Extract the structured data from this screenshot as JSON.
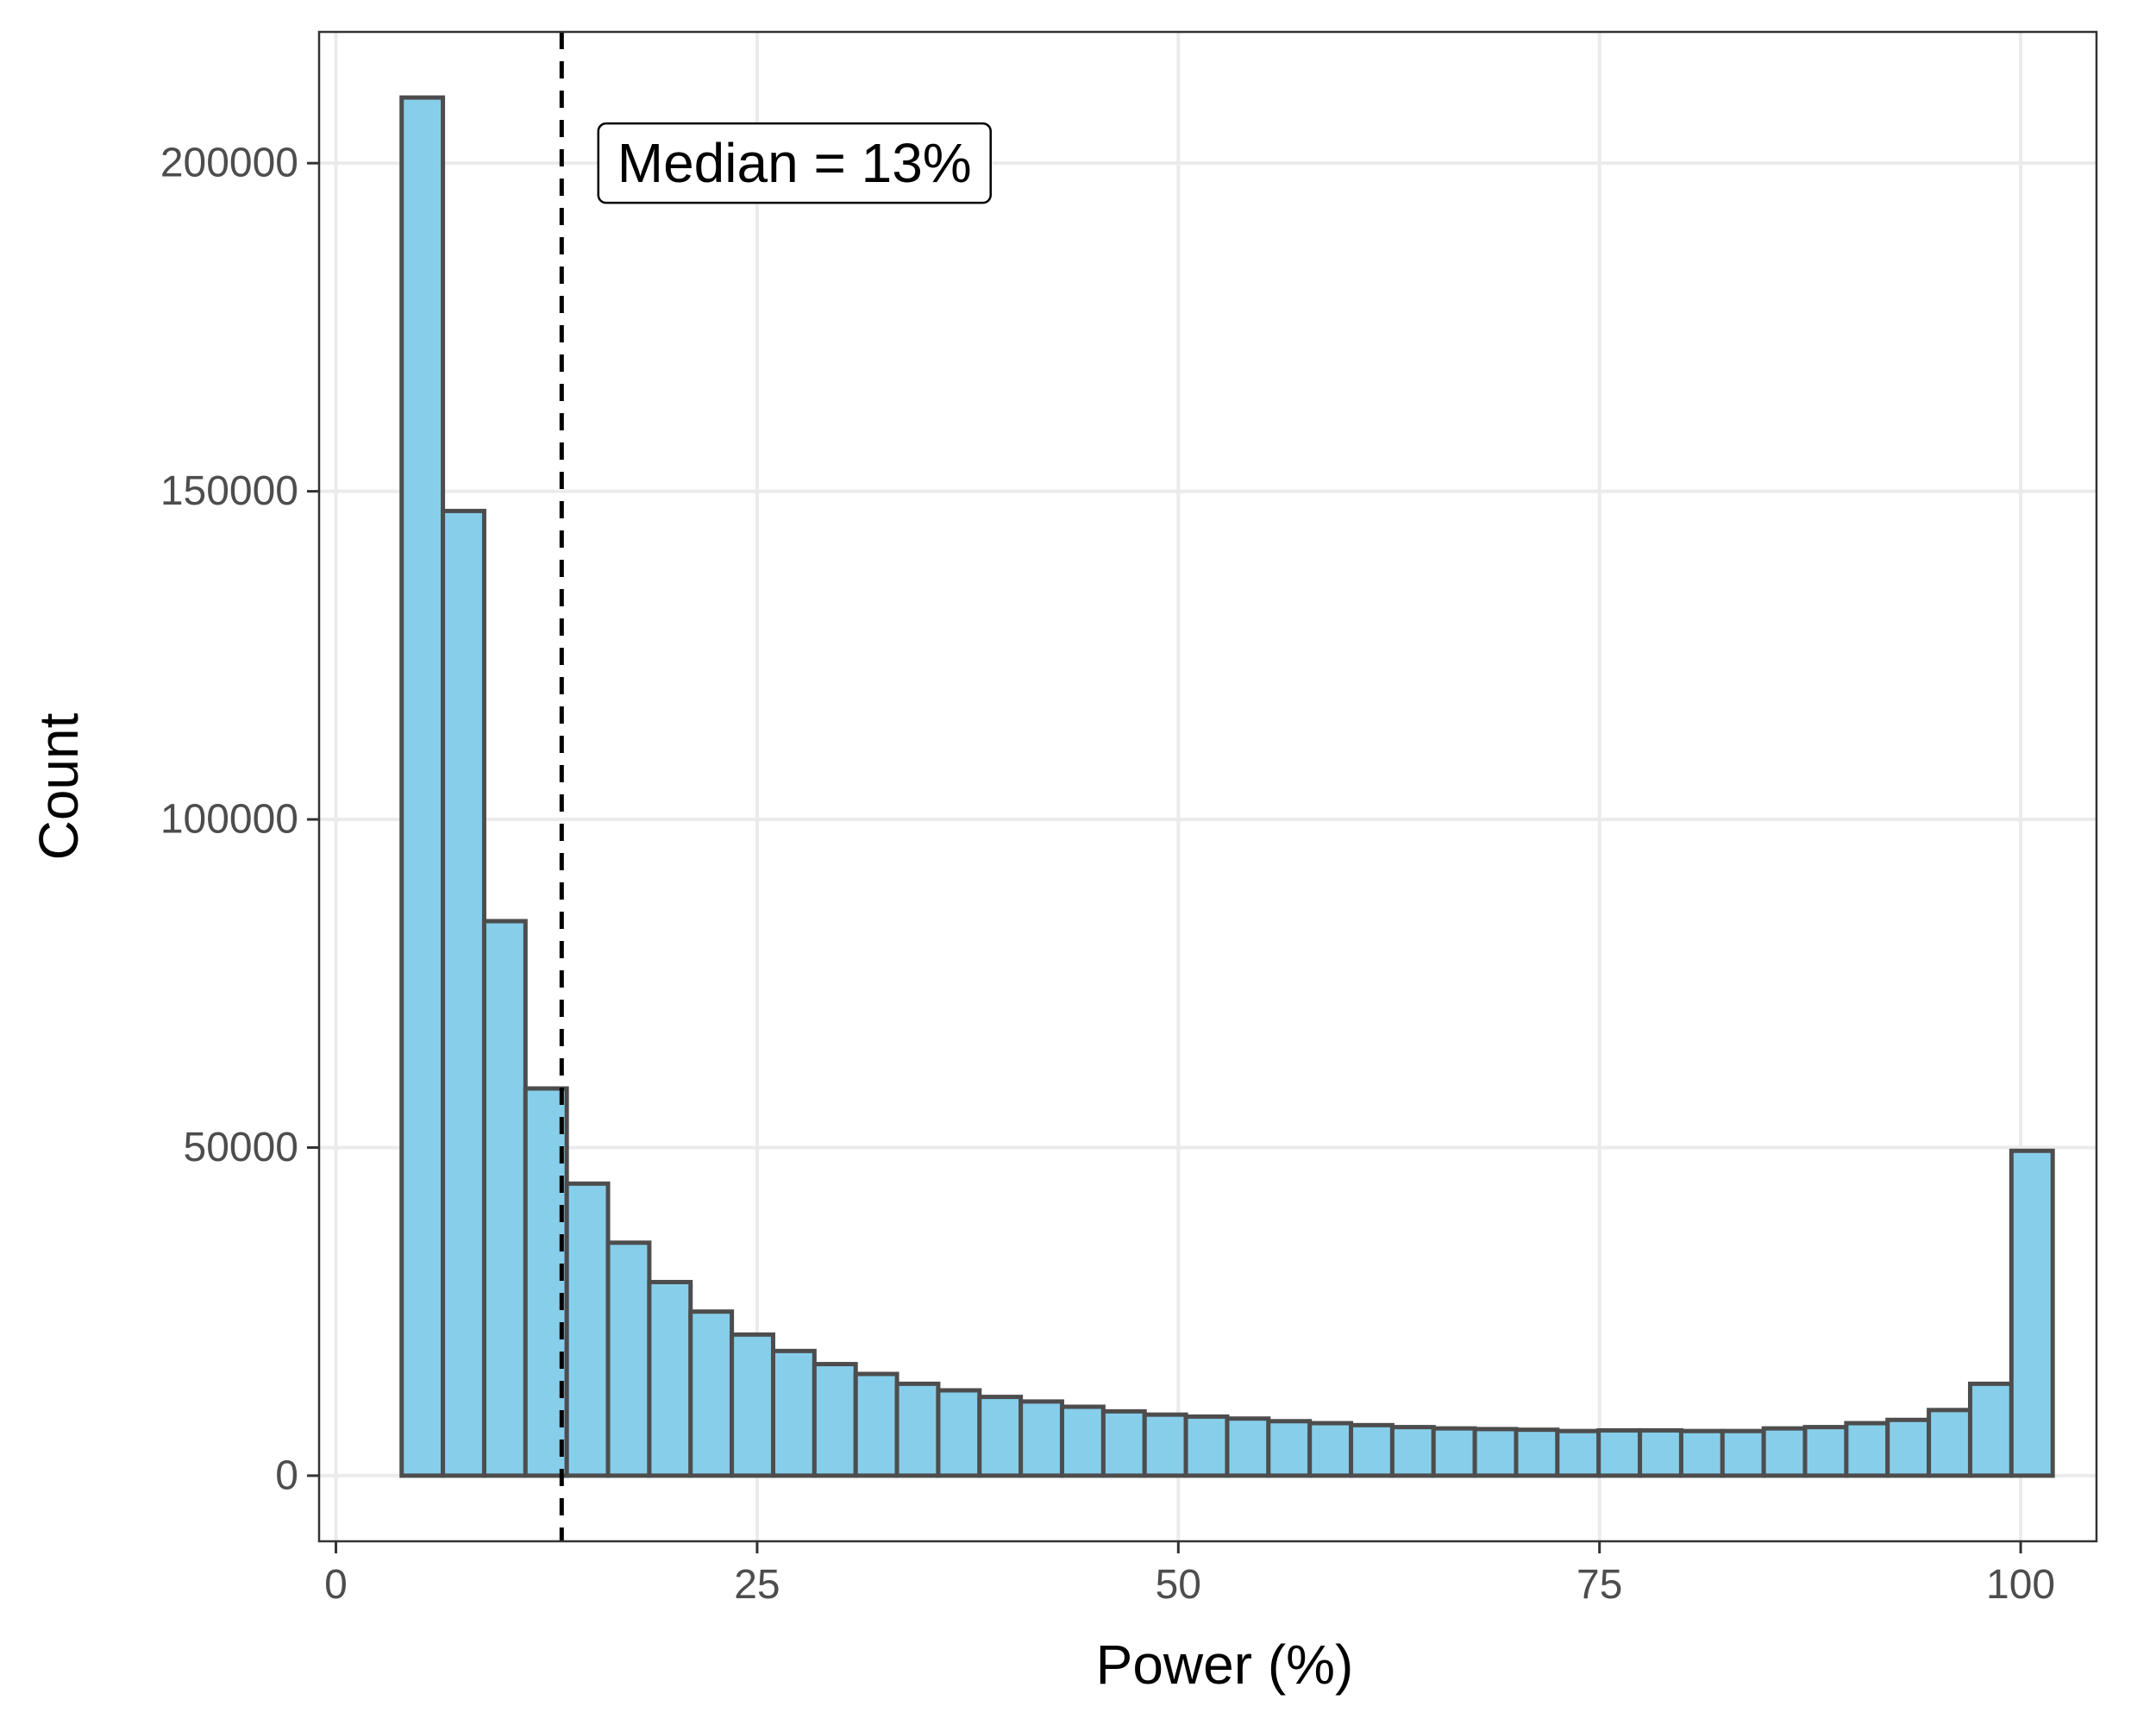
{
  "chart_data": {
    "type": "bar",
    "subtype": "histogram",
    "xlabel": "Power (%)",
    "ylabel": "Count",
    "xlim": [
      -1,
      104.5
    ],
    "ylim": [
      -10000,
      220000
    ],
    "xticks": [
      0,
      25,
      50,
      75,
      100
    ],
    "xtick_labels": [
      "0",
      "25",
      "50",
      "75",
      "100"
    ],
    "yticks": [
      0,
      50000,
      100000,
      150000,
      200000
    ],
    "ytick_labels": [
      "0",
      "50000",
      "100000",
      "150000",
      "200000"
    ],
    "grid": true,
    "bin_width": 2.45,
    "bins": [
      {
        "start": 3.9,
        "count": 210000
      },
      {
        "start": 6.35,
        "count": 147000
      },
      {
        "start": 8.8,
        "count": 84500
      },
      {
        "start": 11.25,
        "count": 59000
      },
      {
        "start": 13.7,
        "count": 44500
      },
      {
        "start": 16.15,
        "count": 35500
      },
      {
        "start": 18.6,
        "count": 29500
      },
      {
        "start": 21.05,
        "count": 25000
      },
      {
        "start": 23.5,
        "count": 21500
      },
      {
        "start": 25.95,
        "count": 19000
      },
      {
        "start": 28.4,
        "count": 17000
      },
      {
        "start": 30.85,
        "count": 15500
      },
      {
        "start": 33.3,
        "count": 14000
      },
      {
        "start": 35.75,
        "count": 13000
      },
      {
        "start": 38.2,
        "count": 12000
      },
      {
        "start": 40.65,
        "count": 11300
      },
      {
        "start": 43.1,
        "count": 10500
      },
      {
        "start": 45.55,
        "count": 9800
      },
      {
        "start": 48.0,
        "count": 9300
      },
      {
        "start": 50.45,
        "count": 9000
      },
      {
        "start": 52.9,
        "count": 8700
      },
      {
        "start": 55.35,
        "count": 8300
      },
      {
        "start": 57.8,
        "count": 8000
      },
      {
        "start": 60.25,
        "count": 7700
      },
      {
        "start": 62.7,
        "count": 7400
      },
      {
        "start": 65.15,
        "count": 7200
      },
      {
        "start": 67.6,
        "count": 7100
      },
      {
        "start": 70.05,
        "count": 7000
      },
      {
        "start": 72.5,
        "count": 6800
      },
      {
        "start": 74.95,
        "count": 6900
      },
      {
        "start": 77.4,
        "count": 6900
      },
      {
        "start": 79.85,
        "count": 6800
      },
      {
        "start": 82.3,
        "count": 6800
      },
      {
        "start": 84.75,
        "count": 7200
      },
      {
        "start": 87.2,
        "count": 7400
      },
      {
        "start": 89.65,
        "count": 8000
      },
      {
        "start": 92.1,
        "count": 8500
      },
      {
        "start": 94.55,
        "count": 10000
      },
      {
        "start": 97.0,
        "count": 14000
      },
      {
        "start": 99.45,
        "count": 49500
      }
    ],
    "median_line": {
      "x": 13.4,
      "style": "dashed"
    },
    "annotation": {
      "text": "Median = 13%",
      "x": 16.7,
      "y": 200000
    },
    "colors": {
      "bar_fill": "#87ceeb",
      "bar_stroke": "#4d4d4d",
      "median_line": "#000000",
      "grid": "#ebebeb",
      "panel_border": "#333333"
    }
  }
}
